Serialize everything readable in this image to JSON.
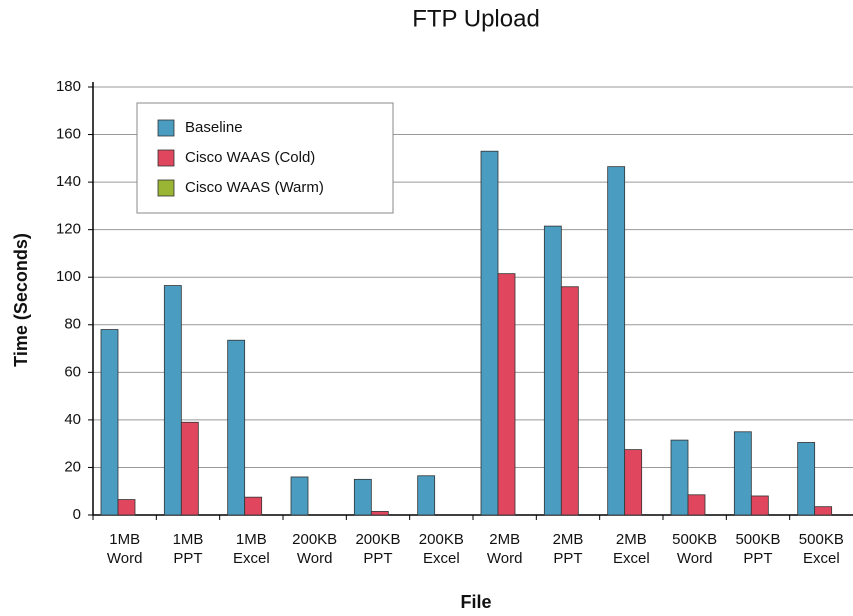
{
  "chart_data": {
    "type": "bar",
    "title": "FTP Upload",
    "x_label": "File",
    "y_label": "Time (Seconds)",
    "categories": [
      "1MB Word",
      "1MB PPT",
      "1MB Excel",
      "200KB Word",
      "200KB PPT",
      "200KB Excel",
      "2MB Word",
      "2MB PPT",
      "2MB Excel",
      "500KB Word",
      "500KB PPT",
      "500KB Excel"
    ],
    "series": [
      {
        "name": "Baseline",
        "color": "#4a9cc0",
        "values": [
          78,
          96.5,
          73.5,
          16,
          15,
          16.5,
          153,
          121.5,
          146.5,
          31.5,
          35,
          30.5
        ]
      },
      {
        "name": "Cisco WAAS (Cold)",
        "color": "#e0465e",
        "values": [
          6.5,
          39,
          7.5,
          0,
          1.5,
          0,
          101.5,
          96,
          27.5,
          8.5,
          8,
          3.5
        ]
      },
      {
        "name": "Cisco WAAS (Warm)",
        "color": "#9ab534",
        "values": [
          0,
          0,
          0,
          0,
          0,
          0,
          0,
          0,
          0,
          0,
          0,
          0
        ]
      }
    ],
    "ylim": [
      0,
      180
    ],
    "yticks": [
      0,
      20,
      40,
      60,
      80,
      100,
      120,
      140,
      160,
      180
    ],
    "grid": true,
    "legend": "upper left"
  }
}
